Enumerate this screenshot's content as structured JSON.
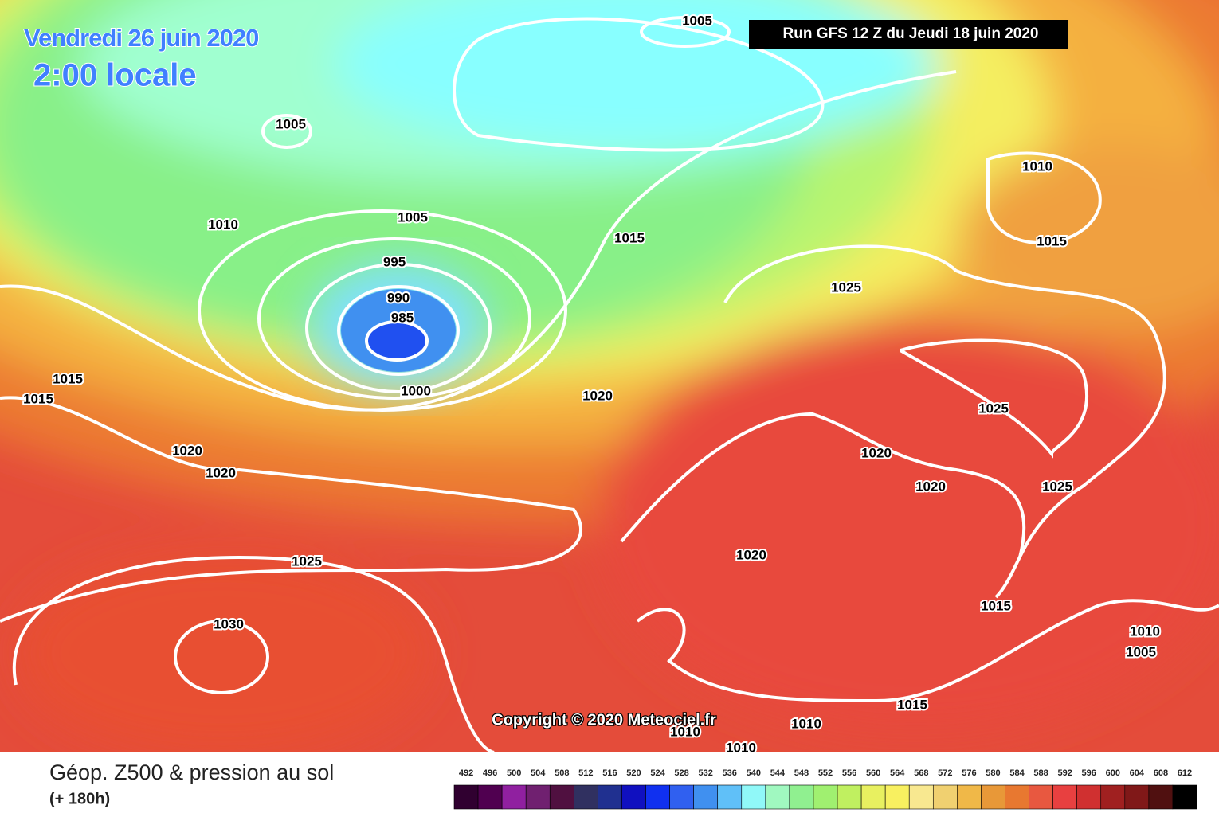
{
  "title": "Vendredi 26 juin 2020",
  "subtitle": "2:00 locale",
  "run": "Run GFS 12 Z du Jeudi 18 juin 2020",
  "copyright": "Copyright © 2020 Meteociel.fr",
  "legend": {
    "title": "Géop. Z500 & pression au sol",
    "lead": "(+ 180h)",
    "labels": [
      492,
      496,
      500,
      504,
      508,
      512,
      516,
      520,
      524,
      528,
      532,
      536,
      540,
      544,
      548,
      552,
      556,
      560,
      564,
      568,
      572,
      576,
      580,
      584,
      588,
      592,
      596,
      600,
      604,
      608,
      612
    ],
    "colors": [
      "#300030",
      "#500050",
      "#9020a0",
      "#702070",
      "#501040",
      "#303060",
      "#203090",
      "#1010c0",
      "#1030f0",
      "#3060f0",
      "#4090f0",
      "#60c0f8",
      "#90f8f8",
      "#a0f8c0",
      "#90f090",
      "#a0f070",
      "#c0f060",
      "#e8f060",
      "#f8f060",
      "#f8e890",
      "#f0d070",
      "#f0b848",
      "#e89838",
      "#e87830",
      "#e85840",
      "#e84040",
      "#d03030",
      "#a02020",
      "#801818",
      "#501010",
      "#000000"
    ]
  },
  "isobars": [
    1005,
    1005,
    1010,
    1005,
    995,
    990,
    985,
    1000,
    1015,
    1015,
    1015,
    1020,
    1020,
    1020,
    1025,
    1030,
    1010,
    1015,
    1025,
    1025,
    1020,
    1020,
    1025,
    1020,
    1015,
    1010,
    1005,
    1015,
    1010,
    1010,
    1010
  ]
}
